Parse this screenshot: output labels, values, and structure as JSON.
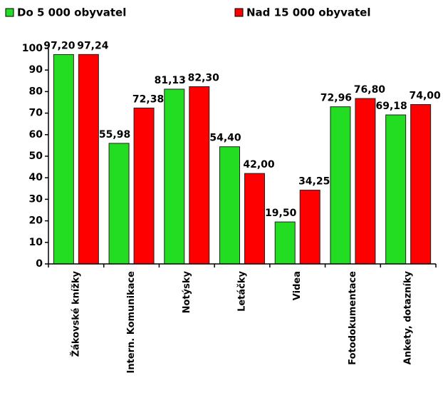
{
  "chart_data": {
    "type": "bar",
    "categories": [
      "Žákovské knížky",
      "Intern. Komunikace",
      "Notýsky",
      "Letáčky",
      "Videa",
      "Fotodokumentace",
      "Ankety, dotazníky"
    ],
    "series": [
      {
        "name": "Do 5 000 obyvatel",
        "color": "#22dd22",
        "values": [
          97.2,
          55.98,
          81.13,
          54.4,
          19.5,
          72.96,
          69.18
        ],
        "value_labels": [
          "97,20",
          "55,98",
          "81,13",
          "54,40",
          "19,50",
          "72,96",
          "69,18"
        ]
      },
      {
        "name": "Nad 15 000 obyvatel",
        "color": "#ff0000",
        "values": [
          97.24,
          72.38,
          82.3,
          42.0,
          34.25,
          76.8,
          74.0
        ],
        "value_labels": [
          "97,24",
          "72,38",
          "82,30",
          "42,00",
          "34,25",
          "76,80",
          "74,00"
        ]
      }
    ],
    "ylim": [
      0,
      100
    ],
    "yticks": [
      0,
      10,
      20,
      30,
      40,
      50,
      60,
      70,
      80,
      90,
      100
    ],
    "legend": "top"
  }
}
